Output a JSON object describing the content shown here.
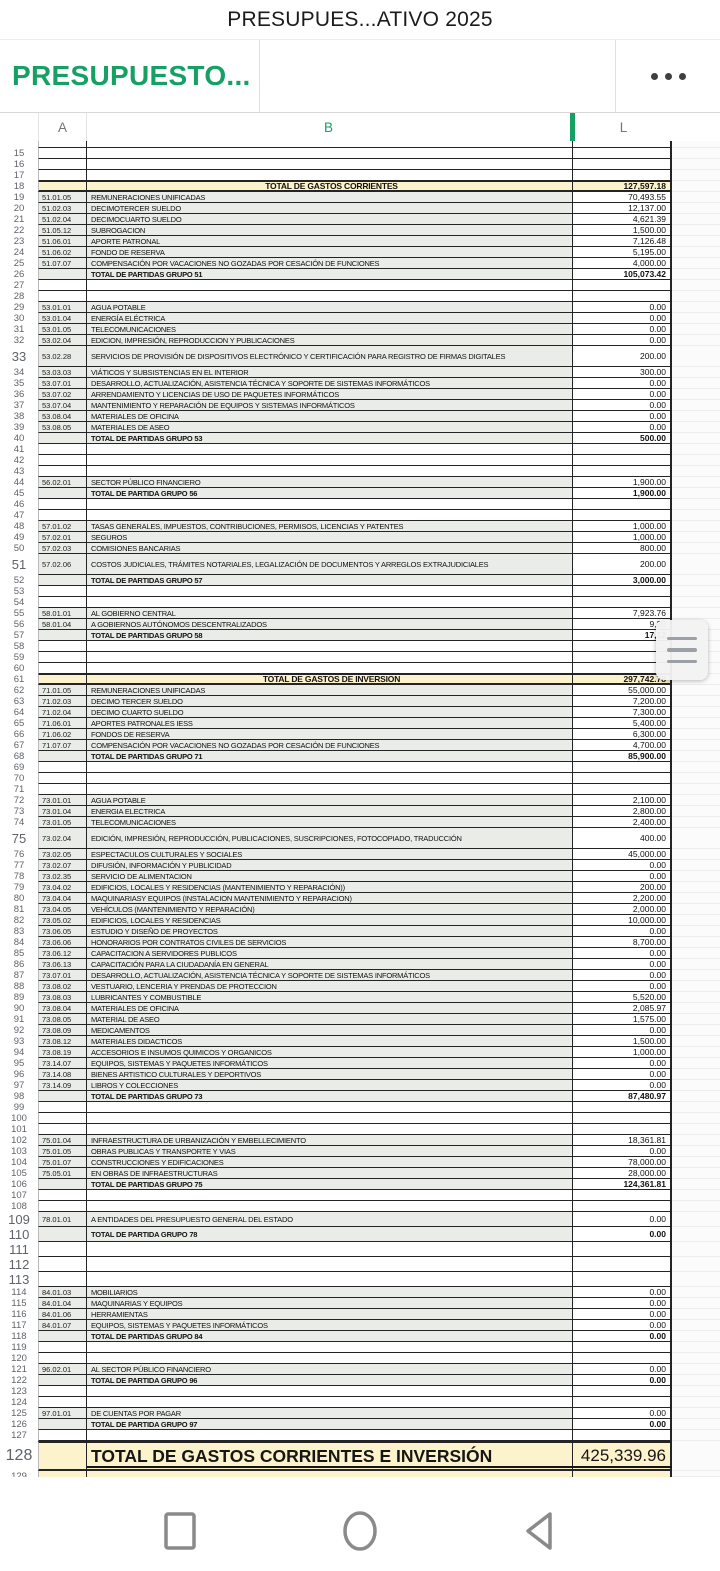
{
  "app": {
    "title": "PRESUPUES...ATIVO 2025",
    "more_icon": "more-options-icon"
  },
  "sheet_tab": {
    "name": "PRESUPUESTO..."
  },
  "colors": {
    "accent_green": "#16a064",
    "highlight_yellow": "#fcf2cb",
    "band_gray": "#eaece7"
  },
  "columns": {
    "a": "A",
    "b": "B",
    "l": "L"
  },
  "nav": {
    "icons": [
      "recents-icon",
      "home-icon",
      "back-icon"
    ]
  },
  "scroll_handle_icon": "scroll-handle-icon",
  "sheet": {
    "rows": [
      {
        "n": "14",
        "t": "partial"
      },
      {
        "n": "15",
        "t": "empty"
      },
      {
        "n": "16",
        "t": "empty"
      },
      {
        "n": "17",
        "t": "empty"
      },
      {
        "n": "18",
        "t": "section",
        "label": "TOTAL DE GASTOS CORRIENTES",
        "value": "127,597.18"
      },
      {
        "n": "19",
        "t": "data",
        "code": "51.01.05",
        "label": "REMUNERACIONES UNIFICADAS",
        "value": "70,493.55"
      },
      {
        "n": "20",
        "t": "data",
        "code": "51.02.03",
        "label": "DECIMOTERCER SUELDO",
        "value": "12,137.00"
      },
      {
        "n": "21",
        "t": "data",
        "code": "51.02.04",
        "label": "DECIMOCUARTO SUELDO",
        "value": "4,621.39"
      },
      {
        "n": "22",
        "t": "data",
        "code": "51.05.12",
        "label": "SUBROGACION",
        "value": "1,500.00"
      },
      {
        "n": "23",
        "t": "data",
        "code": "51.06.01",
        "label": "APORTE PATRONAL",
        "value": "7,126.48"
      },
      {
        "n": "24",
        "t": "data",
        "code": "51.06.02",
        "label": "FONDO DE RESERVA",
        "value": "5,195.00"
      },
      {
        "n": "25",
        "t": "data",
        "code": "51.07.07",
        "label": "COMPENSACIÓN POR VACACIONES NO GOZADAS POR CESACIÓN DE FUNCIONES",
        "value": "4,000.00"
      },
      {
        "n": "26",
        "t": "total",
        "label": "TOTAL DE PARTIDAS GRUPO 51",
        "value": "105,073.42"
      },
      {
        "n": "27",
        "t": "empty"
      },
      {
        "n": "28",
        "t": "empty"
      },
      {
        "n": "29",
        "t": "data",
        "code": "53.01.01",
        "label": "AGUA POTABLE",
        "value": "0.00"
      },
      {
        "n": "30",
        "t": "data",
        "code": "53.01.04",
        "label": "ENERGÍA ELÉCTRICA",
        "value": "0.00"
      },
      {
        "n": "31",
        "t": "data",
        "code": "53.01.05",
        "label": "TELECOMUNICACIONES",
        "value": "0.00"
      },
      {
        "n": "32",
        "t": "data",
        "code": "53.02.04",
        "label": "EDICION, IMPRESIÓN, REPRODUCCION Y PUBLICACIONES",
        "value": "0.00"
      },
      {
        "n": "33",
        "t": "data",
        "h": "tall",
        "code": "53.02.28",
        "label": "SERVICIOS DE PROVISIÓN DE DISPOSITIVOS ELECTRÓNICO Y CERTIFICACIÓN PARA REGISTRO DE FIRMAS DIGITALES",
        "value": "200.00"
      },
      {
        "n": "34",
        "t": "data",
        "code": "53.03.03",
        "label": "VIÁTICOS Y SUBSISTENCIAS EN EL INTERIOR",
        "value": "300.00"
      },
      {
        "n": "35",
        "t": "data",
        "code": "53.07.01",
        "label": "DESARROLLO, ACTUALIZACIÓN, ASISTENCIA TÉCNICA Y SOPORTE DE SISTEMAS INFORMÁTICOS",
        "value": "0.00"
      },
      {
        "n": "36",
        "t": "data",
        "code": "53.07.02",
        "label": "ARRENDAMIENTO Y LICENCIAS DE USO DE PAQUETES INFORMÁTICOS",
        "value": "0.00"
      },
      {
        "n": "37",
        "t": "data",
        "code": "53.07.04",
        "label": "MANTENIMIENTO Y REPARACIÓN DE EQUIPOS Y SISTEMAS INFORMÁTICOS",
        "value": "0.00"
      },
      {
        "n": "38",
        "t": "data",
        "code": "53.08.04",
        "label": "MATERIALES DE OFICINA",
        "value": "0.00"
      },
      {
        "n": "39",
        "t": "data",
        "code": "53.08.05",
        "label": "MATERIALES DE ASEO",
        "value": "0.00"
      },
      {
        "n": "40",
        "t": "total",
        "label": "TOTAL DE PARTIDAS GRUPO 53",
        "value": "500.00"
      },
      {
        "n": "41",
        "t": "empty"
      },
      {
        "n": "42",
        "t": "empty"
      },
      {
        "n": "43",
        "t": "empty"
      },
      {
        "n": "44",
        "t": "data",
        "code": "56.02.01",
        "label": "SECTOR PÚBLICO FINANCIERO",
        "value": "1,900.00"
      },
      {
        "n": "45",
        "t": "total",
        "label": "TOTAL DE PARTIDA GRUPO 56",
        "value": "1,900.00"
      },
      {
        "n": "46",
        "t": "empty"
      },
      {
        "n": "47",
        "t": "empty"
      },
      {
        "n": "48",
        "t": "data",
        "code": "57.01.02",
        "label": "TASAS GENERALES, IMPUESTOS, CONTRIBUCIONES, PERMISOS, LICENCIAS Y PATENTES",
        "value": "1,000.00"
      },
      {
        "n": "49",
        "t": "data",
        "code": "57.02.01",
        "label": "SEGUROS",
        "value": "1,000.00"
      },
      {
        "n": "50",
        "t": "data",
        "code": "57.02.03",
        "label": "COMISIONES BANCARIAS",
        "value": "800.00"
      },
      {
        "n": "51",
        "t": "data",
        "h": "tall",
        "code": "57.02.06",
        "label": "COSTOS JUDICIALES, TRÁMITES NOTARIALES, LEGALIZACIÓN DE DOCUMENTOS Y ARREGLOS EXTRAJUDICIALES",
        "value": "200.00"
      },
      {
        "n": "52",
        "t": "total",
        "label": "TOTAL DE PARTIDAS GRUPO 57",
        "value": "3,000.00"
      },
      {
        "n": "53",
        "t": "empty"
      },
      {
        "n": "54",
        "t": "empty"
      },
      {
        "n": "55",
        "t": "data",
        "code": "58.01.01",
        "label": "AL GOBIERNO CENTRAL",
        "value": "7,923.76"
      },
      {
        "n": "56",
        "t": "data",
        "code": "58.01.04",
        "label": "A GOBIERNOS AUTÓNOMOS DESCENTRALIZADOS",
        "value": "9,20"
      },
      {
        "n": "57",
        "t": "total",
        "label": "TOTAL DE PARTIDAS GRUPO 58",
        "value": "17,12"
      },
      {
        "n": "58",
        "t": "empty"
      },
      {
        "n": "59",
        "t": "empty"
      },
      {
        "n": "60",
        "t": "empty"
      },
      {
        "n": "61",
        "t": "section",
        "label": "TOTAL DE GASTOS DE INVERSION",
        "value": "297,742.78"
      },
      {
        "n": "62",
        "t": "data",
        "code": "71.01.05",
        "label": "REMUNERACIONES UNIFICADAS",
        "value": "55,000.00"
      },
      {
        "n": "63",
        "t": "data",
        "code": "71.02.03",
        "label": "DECIMO TERCER SUELDO",
        "value": "7,200.00"
      },
      {
        "n": "64",
        "t": "data",
        "code": "71.02.04",
        "label": "DECIMO CUARTO SUELDO",
        "value": "7,300.00"
      },
      {
        "n": "65",
        "t": "data",
        "code": "71.06.01",
        "label": "APORTES PATRONALES IESS",
        "value": "5,400.00"
      },
      {
        "n": "66",
        "t": "data",
        "code": "71.06.02",
        "label": "FONDOS DE RESERVA",
        "value": "6,300.00"
      },
      {
        "n": "67",
        "t": "data",
        "code": "71.07.07",
        "label": "COMPENSACIÓN POR VACACIONES NO GOZADAS POR CESACIÓN DE FUNCIONES",
        "value": "4,700.00"
      },
      {
        "n": "68",
        "t": "total",
        "label": "TOTAL DE PARTIDAS GRUPO 71",
        "value": "85,900.00"
      },
      {
        "n": "69",
        "t": "empty"
      },
      {
        "n": "70",
        "t": "empty"
      },
      {
        "n": "71",
        "t": "empty"
      },
      {
        "n": "72",
        "t": "data",
        "code": "73.01.01",
        "label": "AGUA POTABLE",
        "value": "2,100.00"
      },
      {
        "n": "73",
        "t": "data",
        "code": "73.01.04",
        "label": "ENERGIA ELECTRICA",
        "value": "2,800.00"
      },
      {
        "n": "74",
        "t": "data",
        "code": "73.01.05",
        "label": "TELECOMUNICACIONES",
        "value": "2,400.00"
      },
      {
        "n": "75",
        "t": "data",
        "h": "tall",
        "code": "73.02.04",
        "label": "EDICIÓN, IMPRESIÓN, REPRODUCCIÓN, PUBLICACIONES, SUSCRIPCIONES, FOTOCOPIADO, TRADUCCIÓN",
        "value": "400.00"
      },
      {
        "n": "76",
        "t": "data",
        "code": "73.02.05",
        "label": "ESPECTACULOS CULTURALES Y SOCIALES",
        "value": "45,000.00"
      },
      {
        "n": "77",
        "t": "data",
        "code": "73.02.07",
        "label": "DIFUSIÓN, INFORMACIÓN Y PUBLICIDAD",
        "value": "0.00"
      },
      {
        "n": "78",
        "t": "data",
        "code": "73.02.35",
        "label": "SERVICIO DE ALIMENTACION",
        "value": "0.00"
      },
      {
        "n": "79",
        "t": "data",
        "code": "73.04.02",
        "label": "EDIFICIOS, LOCALES Y RESIDENCIAS (MANTENIMIENTO Y REPARACIÓN))",
        "value": "200.00"
      },
      {
        "n": "80",
        "t": "data",
        "code": "73.04.04",
        "label": "MAQUINARIASY EQUIPOS (INSTALACION MANTENIMIENTO Y REPARACION)",
        "value": "2,200.00"
      },
      {
        "n": "81",
        "t": "data",
        "code": "73.04.05",
        "label": "VEHÍCULOS (MANTENIMIENTO Y REPARACIÓN)",
        "value": "2,000.00"
      },
      {
        "n": "82",
        "t": "data",
        "code": "73.05.02",
        "label": "EDIFICIOS, LOCALES Y RESIDENCIAS",
        "value": "10,000.00"
      },
      {
        "n": "83",
        "t": "data",
        "code": "73.06.05",
        "label": "ESTUDIO Y DISEÑO DE PROYECTOS",
        "value": "0.00"
      },
      {
        "n": "84",
        "t": "data",
        "code": "73.06.06",
        "label": "HONORARIOS POR CONTRATOS CIVILES DE SERVICIOS",
        "value": "8,700.00"
      },
      {
        "n": "85",
        "t": "data",
        "code": "73.06.12",
        "label": "CAPACITACION A SERVIDORES PUBLICOS",
        "value": "0.00"
      },
      {
        "n": "86",
        "t": "data",
        "code": "73.06.13",
        "label": "CAPACITACIÓN PARA LA CIUDADANÍA EN GENERAL",
        "value": "0.00"
      },
      {
        "n": "87",
        "t": "data",
        "code": "73.07.01",
        "label": "DESARROLLO, ACTUALIZACIÓN, ASISTENCIA TÉCNICA Y SOPORTE DE SISTEMAS INFORMÁTICOS",
        "value": "0.00"
      },
      {
        "n": "88",
        "t": "data",
        "code": "73.08.02",
        "label": "VESTUARIO, LENCERIA Y PRENDAS DE PROTECCION",
        "value": "0.00"
      },
      {
        "n": "89",
        "t": "data",
        "code": "73.08.03",
        "label": "LUBRICANTES Y COMBUSTIBLE",
        "value": "5,520.00"
      },
      {
        "n": "90",
        "t": "data",
        "code": "73.08.04",
        "label": "MATERIALES DE OFICINA",
        "value": "2,085.97"
      },
      {
        "n": "91",
        "t": "data",
        "code": "73.08.05",
        "label": "MATERIAL DE ASEO",
        "value": "1,575.00"
      },
      {
        "n": "92",
        "t": "data",
        "code": "73.08.09",
        "label": "MEDICAMENTOS",
        "value": "0.00"
      },
      {
        "n": "93",
        "t": "data",
        "code": "73.08.12",
        "label": "MATERIALES DIDACTICOS",
        "value": "1,500.00"
      },
      {
        "n": "94",
        "t": "data",
        "code": "73.08.19",
        "label": "ACCESORIOS E INSUMOS QUIMICOS Y ORGANICOS",
        "value": "1,000.00"
      },
      {
        "n": "95",
        "t": "data",
        "code": "73.14.07",
        "label": "EQUIPOS, SISTEMAS Y PAQUETES INFORMÁTICOS",
        "value": "0.00"
      },
      {
        "n": "96",
        "t": "data",
        "code": "73.14.08",
        "label": "BIENES ARTISTICO CULTURALES Y DEPORTIVOS",
        "value": "0.00"
      },
      {
        "n": "97",
        "t": "data",
        "code": "73.14.09",
        "label": "LIBROS Y COLECCIONES",
        "value": "0.00"
      },
      {
        "n": "98",
        "t": "total",
        "label": "TOTAL DE PARTIDAS GRUPO 73",
        "value": "87,480.97"
      },
      {
        "n": "99",
        "t": "empty"
      },
      {
        "n": "100",
        "t": "empty"
      },
      {
        "n": "101",
        "t": "empty"
      },
      {
        "n": "102",
        "t": "data",
        "code": "75.01.04",
        "label": "INFRAESTRUCTURA DE URBANIZACIÓN Y EMBELLECIMIENTO",
        "value": "18,361.81"
      },
      {
        "n": "103",
        "t": "data",
        "code": "75.01.05",
        "label": "OBRAS PUBLICAS Y TRANSPORTE Y VIAS",
        "value": "0.00"
      },
      {
        "n": "104",
        "t": "data",
        "code": "75.01.07",
        "label": "CONSTRUCCIONES Y EDIFICACIONES",
        "value": "78,000.00"
      },
      {
        "n": "105",
        "t": "data",
        "code": "75.05.01",
        "label": "EN OBRAS DE INFRAESTRUCTURAS",
        "value": "28,000.00"
      },
      {
        "n": "106",
        "t": "total",
        "label": "TOTAL DE PARTIDAS GRUPO 75",
        "value": "124,361.81"
      },
      {
        "n": "107",
        "t": "empty"
      },
      {
        "n": "108",
        "t": "empty"
      },
      {
        "n": "109",
        "t": "data",
        "h": "mid",
        "code": "78.01.01",
        "label": "A ENTIDADES DEL PRESUPUESTO GENERAL DEL ESTADO",
        "value": "0.00"
      },
      {
        "n": "110",
        "t": "total",
        "h": "mid",
        "label": "TOTAL DE PARTIDA GRUPO 78",
        "value": "0.00"
      },
      {
        "n": "111",
        "t": "empty",
        "h": "mid"
      },
      {
        "n": "112",
        "t": "empty",
        "h": "mid"
      },
      {
        "n": "113",
        "t": "empty",
        "h": "mid"
      },
      {
        "n": "114",
        "t": "data",
        "code": "84.01.03",
        "label": "MOBILIARIOS",
        "value": "0.00"
      },
      {
        "n": "115",
        "t": "data",
        "code": "84.01.04",
        "label": "MAQUINARIAS Y EQUIPOS",
        "value": "0.00"
      },
      {
        "n": "116",
        "t": "data",
        "code": "84.01.06",
        "label": "HERRAMIENTAS",
        "value": "0.00"
      },
      {
        "n": "117",
        "t": "data",
        "code": "84.01.07",
        "label": "EQUIPOS, SISTEMAS Y PAQUETES INFORMÁTICOS",
        "value": "0.00"
      },
      {
        "n": "118",
        "t": "total",
        "label": "TOTAL DE PARTIDAS GRUPO 84",
        "value": "0.00"
      },
      {
        "n": "119",
        "t": "empty"
      },
      {
        "n": "120",
        "t": "empty"
      },
      {
        "n": "121",
        "t": "data",
        "code": "96.02.01",
        "label": "AL SECTOR PÚBLICO FINANCIERO",
        "value": "0.00"
      },
      {
        "n": "122",
        "t": "total",
        "label": "TOTAL DE PARTIDA GRUPO 96",
        "value": "0.00"
      },
      {
        "n": "123",
        "t": "empty"
      },
      {
        "n": "124",
        "t": "empty"
      },
      {
        "n": "125",
        "t": "data",
        "code": "97.01.01",
        "label": "DE CUENTAS POR PAGAR",
        "value": "0.00"
      },
      {
        "n": "126",
        "t": "total",
        "label": "TOTAL DE PARTIDA GRUPO 97",
        "value": "0.00"
      },
      {
        "n": "127",
        "t": "empty"
      },
      {
        "n": "128",
        "t": "grand",
        "label": "TOTAL DE GASTOS CORRIENTES E INVERSIÓN",
        "value": "425,339.96"
      },
      {
        "n": "129",
        "t": "sliver"
      }
    ]
  }
}
